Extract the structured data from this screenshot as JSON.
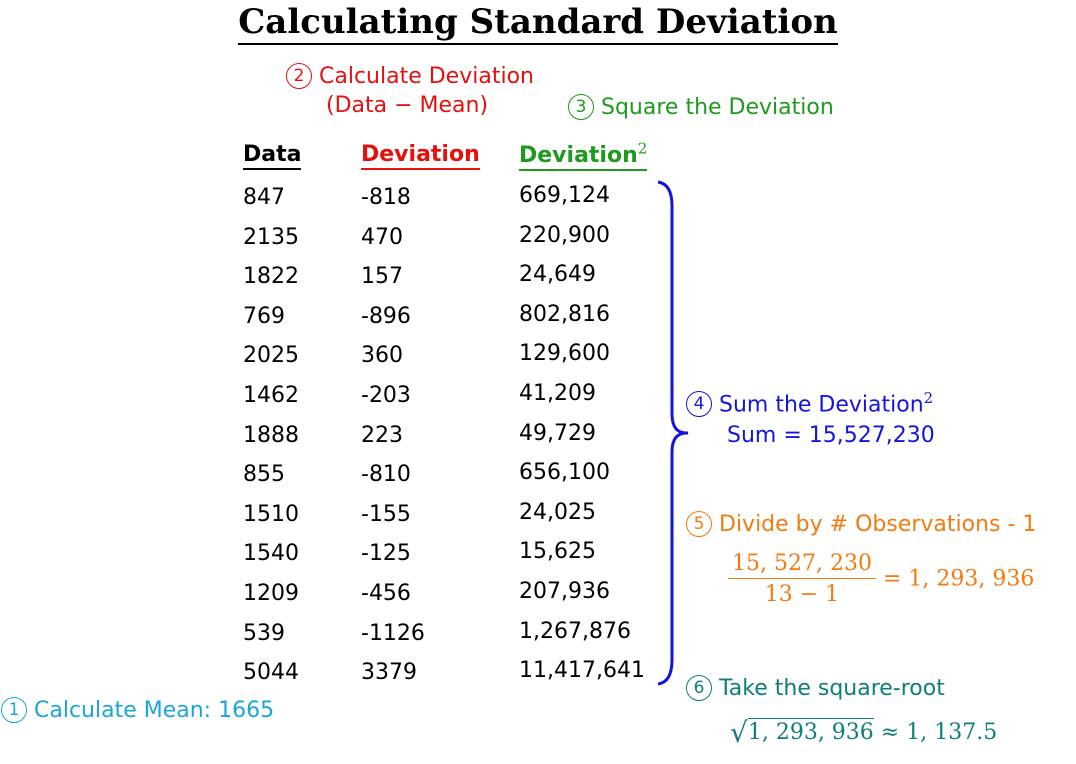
{
  "title": "Calculating Standard Deviation",
  "steps": {
    "s1": {
      "num": "1",
      "label": "Calculate Mean: 1665"
    },
    "s2": {
      "num": "2",
      "line1": "Calculate Deviation",
      "line2": "(Data − Mean)"
    },
    "s3": {
      "num": "3",
      "label": "Square the Deviation"
    },
    "s4": {
      "num": "4",
      "label": "Sum the Deviation",
      "sup": "2",
      "sum": "Sum = 15,527,230"
    },
    "s5": {
      "num": "5",
      "label": "Divide by # Observations - 1",
      "numerator": "15, 527, 230",
      "denominator": "13 − 1",
      "result": "= 1, 293, 936"
    },
    "s6": {
      "num": "6",
      "label": "Take the square-root",
      "radicand": "1, 293, 936",
      "result": "≈ 1, 137.5"
    }
  },
  "table": {
    "headers": {
      "data": "Data",
      "deviation": "Deviation",
      "deviation_sq": "Deviation",
      "sq_sup": "2"
    },
    "rows": [
      {
        "data": "847",
        "deviation": "-818",
        "deviation_sq": "669,124"
      },
      {
        "data": "2135",
        "deviation": "470",
        "deviation_sq": "220,900"
      },
      {
        "data": "1822",
        "deviation": "157",
        "deviation_sq": "24,649"
      },
      {
        "data": "769",
        "deviation": "-896",
        "deviation_sq": "802,816"
      },
      {
        "data": "2025",
        "deviation": "360",
        "deviation_sq": "129,600"
      },
      {
        "data": "1462",
        "deviation": "-203",
        "deviation_sq": "41,209"
      },
      {
        "data": "1888",
        "deviation": "223",
        "deviation_sq": "49,729"
      },
      {
        "data": "855",
        "deviation": "-810",
        "deviation_sq": "656,100"
      },
      {
        "data": "1510",
        "deviation": "-155",
        "deviation_sq": "24,025"
      },
      {
        "data": "1540",
        "deviation": "-125",
        "deviation_sq": "15,625"
      },
      {
        "data": "1209",
        "deviation": "-456",
        "deviation_sq": "207,936"
      },
      {
        "data": "539",
        "deviation": "-1126",
        "deviation_sq": "1,267,876"
      },
      {
        "data": "5044",
        "deviation": "3379",
        "deviation_sq": "11,417,641"
      }
    ]
  },
  "colors": {
    "step2": "#e8100f",
    "step3": "#1e9a1e",
    "step4": "#1414e0",
    "step5": "#f47a10",
    "step6": "#0d7f78",
    "step1": "#1aa6d8"
  }
}
